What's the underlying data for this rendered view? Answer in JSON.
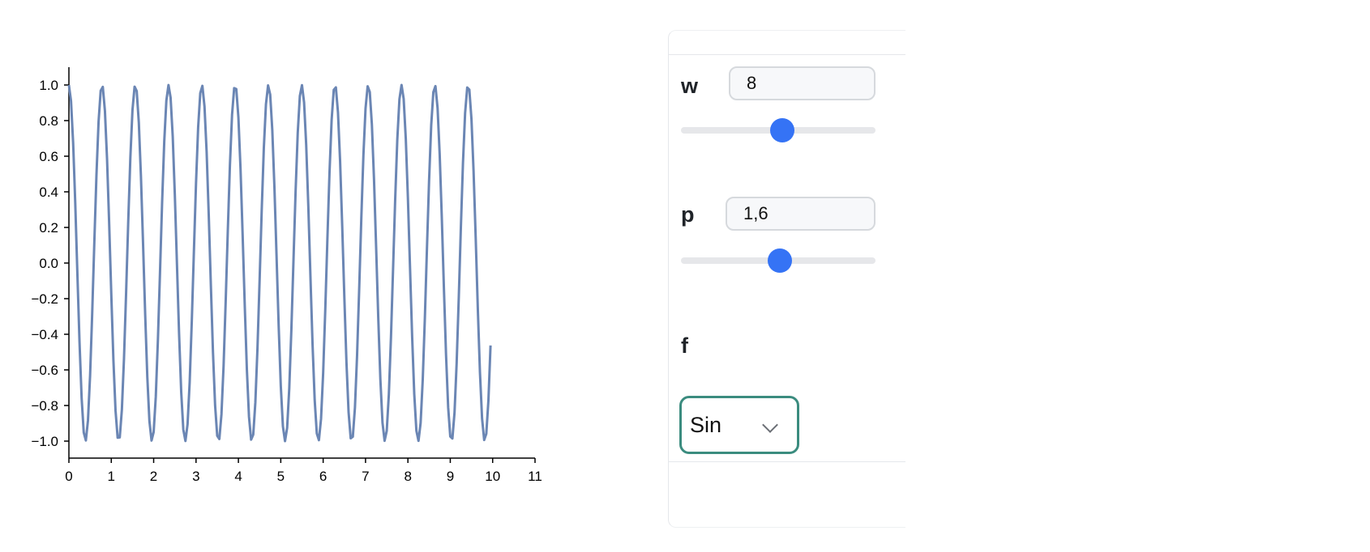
{
  "chart_data": {
    "type": "line",
    "function": "sin",
    "w": 8,
    "p": 1.6,
    "x_range": [
      0,
      10
    ],
    "points": 200,
    "xlim": [
      0,
      11
    ],
    "ylim": [
      -1.1,
      1.1
    ],
    "x_ticks": [
      "0",
      "1",
      "2",
      "3",
      "4",
      "5",
      "6",
      "7",
      "8",
      "9",
      "10",
      "11"
    ],
    "y_ticks": [
      "1.0",
      "0.8",
      "0.6",
      "0.4",
      "0.2",
      "0.0",
      "−0.2",
      "−0.4",
      "−0.6",
      "−0.8",
      "−1.0"
    ],
    "line_color": "#6b86b4",
    "title": "",
    "xlabel": "",
    "ylabel": ""
  },
  "controls": {
    "w": {
      "label": "w",
      "value": "8",
      "slider_fraction": 0.52
    },
    "p": {
      "label": "p",
      "value": "1,6",
      "slider_fraction": 0.51
    },
    "f": {
      "label": "f",
      "selected": "Sin"
    }
  },
  "colors": {
    "slider_thumb": "#3573f5",
    "select_border": "#3b8c7f"
  }
}
